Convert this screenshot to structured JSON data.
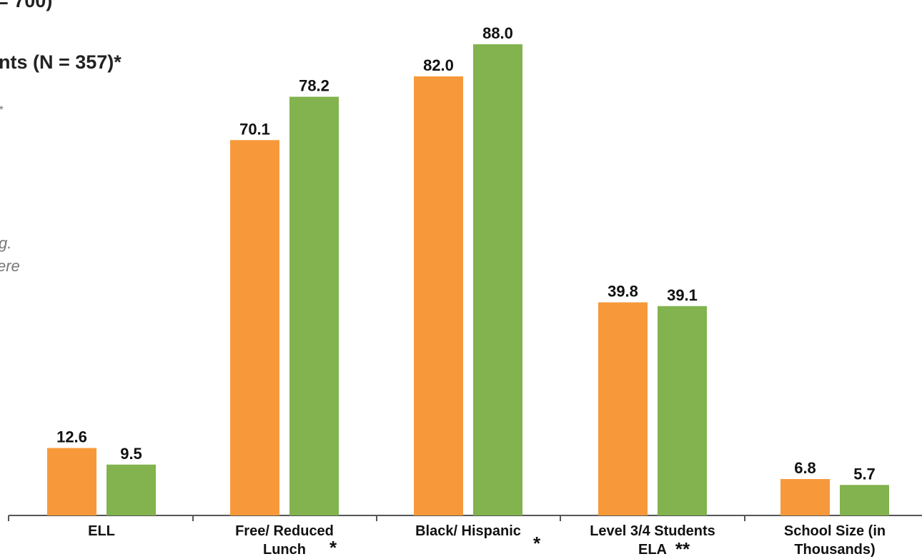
{
  "legend_fragments": [
    {
      "text": "= 700)"
    },
    {
      "text": "nts (N = 357)*"
    },
    {
      "text": "*"
    },
    {
      "text": "g."
    },
    {
      "text": "ere"
    }
  ],
  "colors": {
    "series_1": "#F7993A",
    "series_2": "#82B34E",
    "axis": "#555555"
  },
  "chart_data": {
    "type": "bar",
    "title": "",
    "xlabel": "",
    "ylabel": "",
    "ylim": [
      0,
      100
    ],
    "grid": false,
    "categories": [
      {
        "lines": [
          "ELL"
        ],
        "marker": ""
      },
      {
        "lines": [
          "Free/ Reduced",
          "Lunch"
        ],
        "marker": "*"
      },
      {
        "lines": [
          "Black/ Hispanic"
        ],
        "marker": "*"
      },
      {
        "lines": [
          "Level 3/4 Students",
          "ELA"
        ],
        "marker": "**"
      },
      {
        "lines": [
          "School Size (in",
          "Thousands)"
        ],
        "marker": ""
      }
    ],
    "series": [
      {
        "values": [
          12.6,
          70.1,
          82.0,
          39.8,
          6.8
        ],
        "labels": [
          "12.6",
          "70.1",
          "82.0",
          "39.8",
          "6.8"
        ]
      },
      {
        "values": [
          9.5,
          78.2,
          88.0,
          39.1,
          5.7
        ],
        "labels": [
          "9.5",
          "78.2",
          "88.0",
          "39.1",
          "5.7"
        ]
      }
    ]
  }
}
